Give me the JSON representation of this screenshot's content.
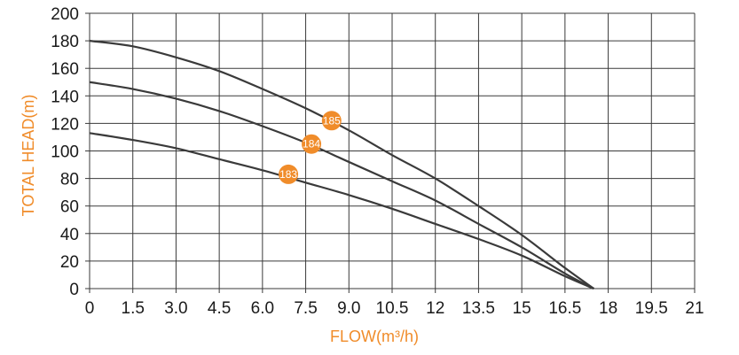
{
  "chart_data": {
    "type": "line",
    "title": "",
    "xlabel": "FLOW(m³/h)",
    "ylabel": "TOTAL HEAD(m)",
    "xlim": [
      0,
      21
    ],
    "ylim": [
      0,
      200
    ],
    "x_ticks": [
      "0",
      "1.5",
      "3.0",
      "4.5",
      "6.0",
      "7.5",
      "9.0",
      "10.5",
      "12",
      "13.5",
      "15",
      "16.5",
      "18",
      "19.5",
      "21"
    ],
    "y_ticks": [
      "0",
      "20",
      "40",
      "60",
      "80",
      "100",
      "120",
      "140",
      "160",
      "180",
      "200"
    ],
    "grid": true,
    "colors": {
      "curve": "#3a3a3a",
      "grid": "#3a3a3a",
      "marker": "#f08c2a",
      "axis_title": "#f08c2a"
    },
    "series": [
      {
        "name": "185",
        "x": [
          0,
          1.5,
          3.0,
          4.5,
          6.0,
          7.5,
          9.0,
          10.5,
          12,
          13.5,
          15,
          16.5,
          17.5
        ],
        "y": [
          180,
          176,
          168,
          158,
          145,
          131,
          115,
          97,
          80,
          60,
          39,
          15,
          0
        ],
        "label_at": [
          8.4,
          122
        ]
      },
      {
        "name": "184",
        "x": [
          0,
          1.5,
          3.0,
          4.5,
          6.0,
          7.5,
          9.0,
          10.5,
          12,
          13.5,
          15,
          16.5,
          17.5
        ],
        "y": [
          150,
          145,
          138,
          129,
          118,
          106,
          92,
          78,
          64,
          47,
          30,
          11,
          0
        ],
        "label_at": [
          7.7,
          105
        ]
      },
      {
        "name": "183",
        "x": [
          0,
          1.5,
          3.0,
          4.5,
          6.0,
          7.5,
          9.0,
          10.5,
          12,
          13.5,
          15,
          16.5,
          17.5
        ],
        "y": [
          113,
          108,
          102,
          94,
          86,
          77,
          68,
          58,
          47,
          36,
          24,
          9,
          0
        ],
        "label_at": [
          6.9,
          83
        ]
      }
    ]
  }
}
